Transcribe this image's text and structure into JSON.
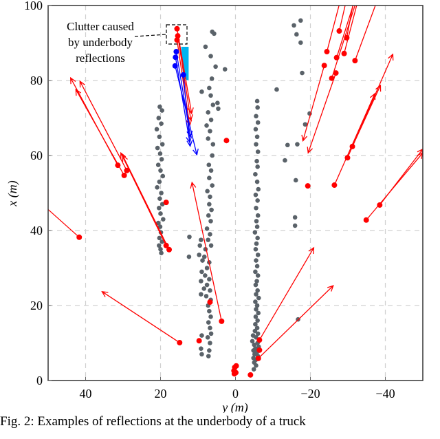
{
  "chart_data": {
    "type": "scatter",
    "xlabel": "y (m)",
    "ylabel": "x (m)",
    "xlim": [
      50,
      -50
    ],
    "ylim": [
      0,
      100
    ],
    "xticks": [
      "40",
      "20",
      "0",
      "−20",
      "−40"
    ],
    "xtick_values": [
      40,
      20,
      0,
      -20,
      -40
    ],
    "yticks": [
      "0",
      "20",
      "40",
      "60",
      "80",
      "100"
    ],
    "ytick_values": [
      0,
      20,
      40,
      60,
      80,
      100
    ],
    "grid": true,
    "colors": {
      "clutter": "#5a6269",
      "red": "#ff0000",
      "blue": "#0000ff",
      "cyan": "#00b4f0"
    },
    "annotation": {
      "lines": [
        "Clutter caused",
        "by underbody",
        "reflections"
      ]
    },
    "gray_points": [
      [
        20.2,
        73
      ],
      [
        19.6,
        72
      ],
      [
        20.5,
        70
      ],
      [
        19.8,
        68.5
      ],
      [
        21.0,
        67
      ],
      [
        20.3,
        65
      ],
      [
        19.5,
        63
      ],
      [
        20.8,
        62
      ],
      [
        20.1,
        60.5
      ],
      [
        19.7,
        59
      ],
      [
        20.6,
        57.5
      ],
      [
        20.0,
        56
      ],
      [
        19.4,
        54.5
      ],
      [
        20.3,
        53
      ],
      [
        20.9,
        51.5
      ],
      [
        19.8,
        50
      ],
      [
        20.2,
        48.5
      ],
      [
        19.5,
        47
      ],
      [
        20.4,
        46
      ],
      [
        20.0,
        44.5
      ],
      [
        19.3,
        43
      ],
      [
        20.6,
        42
      ],
      [
        20.1,
        41
      ],
      [
        19.9,
        39.5
      ],
      [
        20.3,
        38
      ],
      [
        19.6,
        37
      ],
      [
        20.4,
        36
      ],
      [
        20.0,
        35
      ],
      [
        19.8,
        34
      ],
      [
        6.2,
        93
      ],
      [
        5.7,
        92.5
      ],
      [
        8.0,
        89
      ],
      [
        6.6,
        86.5
      ],
      [
        5.3,
        83.7
      ],
      [
        2.8,
        83
      ],
      [
        6.3,
        80.5
      ],
      [
        7.0,
        78
      ],
      [
        9.0,
        77
      ],
      [
        6.6,
        76
      ],
      [
        4.8,
        74
      ],
      [
        6.0,
        73.5
      ],
      [
        4.6,
        72.5
      ],
      [
        7.3,
        71.5
      ],
      [
        6.5,
        69.5
      ],
      [
        7.7,
        68
      ],
      [
        6.8,
        66.5
      ],
      [
        7.3,
        64.5
      ],
      [
        6.0,
        63
      ],
      [
        6.2,
        60
      ],
      [
        7.1,
        57.5
      ],
      [
        6.5,
        56
      ],
      [
        7.0,
        54
      ],
      [
        6.2,
        52
      ],
      [
        7.5,
        50.5
      ],
      [
        6.8,
        49
      ],
      [
        7.0,
        47
      ],
      [
        6.4,
        45.5
      ],
      [
        7.2,
        44
      ],
      [
        6.6,
        42.5
      ],
      [
        7.6,
        40.5
      ],
      [
        6.8,
        39
      ],
      [
        7.3,
        37.5
      ],
      [
        6.5,
        36
      ],
      [
        9.2,
        37.5
      ],
      [
        9.5,
        36
      ],
      [
        8.0,
        35
      ],
      [
        9.7,
        33.5
      ],
      [
        8.3,
        33
      ],
      [
        8.8,
        32
      ],
      [
        7.0,
        31.5
      ],
      [
        7.6,
        30
      ],
      [
        9.0,
        29
      ],
      [
        8.1,
        28
      ],
      [
        7.0,
        27
      ],
      [
        9.2,
        26.5
      ],
      [
        7.6,
        25.5
      ],
      [
        8.4,
        24.5
      ],
      [
        6.8,
        24
      ],
      [
        9.2,
        23
      ],
      [
        7.8,
        22.5
      ],
      [
        6.6,
        21.5
      ],
      [
        7.3,
        20
      ],
      [
        7.0,
        18.5
      ],
      [
        6.6,
        17
      ],
      [
        7.2,
        15.5
      ],
      [
        6.8,
        14
      ],
      [
        6.5,
        12.5
      ],
      [
        9.0,
        12
      ],
      [
        7.4,
        11.5
      ],
      [
        6.8,
        10
      ],
      [
        9.2,
        8.5
      ],
      [
        7.0,
        8
      ],
      [
        9.0,
        7
      ],
      [
        7.2,
        6.5
      ],
      [
        12.3,
        38.3
      ],
      [
        12.4,
        33
      ],
      [
        -5.8,
        74.5
      ],
      [
        -5.9,
        72.8
      ],
      [
        -5.5,
        70.5
      ],
      [
        -6.0,
        68.8
      ],
      [
        -5.4,
        67
      ],
      [
        -5.8,
        65
      ],
      [
        -5.5,
        63
      ],
      [
        -6.0,
        61
      ],
      [
        -5.7,
        58.5
      ],
      [
        -5.9,
        57
      ],
      [
        -5.3,
        55
      ],
      [
        -5.8,
        53
      ],
      [
        -6.1,
        51
      ],
      [
        -5.4,
        49.5
      ],
      [
        -5.9,
        48
      ],
      [
        -5.5,
        46
      ],
      [
        -6.0,
        44
      ],
      [
        -5.6,
        42.5
      ],
      [
        -5.8,
        41
      ],
      [
        -5.2,
        39.5
      ],
      [
        -5.9,
        38
      ],
      [
        -5.6,
        36.5
      ],
      [
        -5.4,
        35
      ],
      [
        -6.0,
        33.5
      ],
      [
        -5.5,
        32
      ],
      [
        -5.8,
        30.5
      ],
      [
        -5.3,
        29
      ],
      [
        -6.0,
        28
      ],
      [
        -5.7,
        26.5
      ],
      [
        -5.4,
        25.5
      ],
      [
        -5.9,
        24
      ],
      [
        -5.5,
        23
      ],
      [
        -6.2,
        22
      ],
      [
        -5.3,
        21
      ],
      [
        -5.8,
        20
      ],
      [
        -5.5,
        19
      ],
      [
        -6.1,
        18
      ],
      [
        -5.4,
        17
      ],
      [
        -5.9,
        16
      ],
      [
        -5.3,
        15
      ],
      [
        -5.8,
        14
      ],
      [
        -5.2,
        13.2
      ],
      [
        -6.0,
        12.5
      ],
      [
        -4.7,
        12
      ],
      [
        -5.5,
        11.5
      ],
      [
        -4.5,
        10.5
      ],
      [
        -5.9,
        10
      ],
      [
        -5.0,
        9.5
      ],
      [
        -6.2,
        9
      ],
      [
        -5.3,
        8.5
      ],
      [
        -4.8,
        8
      ],
      [
        -5.7,
        7.5
      ],
      [
        -5.1,
        7
      ],
      [
        -6.0,
        6.5
      ],
      [
        -4.8,
        6
      ],
      [
        -5.4,
        5.5
      ],
      [
        -5.0,
        4.8
      ],
      [
        -5.5,
        4
      ],
      [
        -4.9,
        3
      ],
      [
        -15.6,
        94.7
      ],
      [
        -17.4,
        96
      ],
      [
        -16.3,
        92.3
      ],
      [
        -17.4,
        90.1
      ],
      [
        -17.8,
        82
      ],
      [
        -11.0,
        77.6
      ],
      [
        -18.6,
        68.3
      ],
      [
        -19.8,
        71.2
      ],
      [
        -13.9,
        62.8
      ],
      [
        -16.5,
        63
      ],
      [
        -13.2,
        58.7
      ],
      [
        -16.1,
        53.4
      ],
      [
        -15.9,
        43.5
      ],
      [
        -15.9,
        41.3
      ],
      [
        -16.7,
        16.3
      ]
    ],
    "red_points": [
      [
        41.7,
        38.2
      ],
      [
        31.4,
        57.4
      ],
      [
        29.7,
        54.7
      ],
      [
        29.0,
        56.0
      ],
      [
        18.5,
        47.5
      ],
      [
        18.5,
        36.0
      ],
      [
        17.7,
        34.9
      ],
      [
        14.9,
        10.1
      ],
      [
        3.7,
        15.8
      ],
      [
        6.8,
        20.9
      ],
      [
        9.7,
        10.6
      ],
      [
        2.4,
        64.0
      ],
      [
        0.2,
        3.5
      ],
      [
        -0.2,
        3.9
      ],
      [
        0.4,
        2.6
      ],
      [
        -0.1,
        2.1
      ],
      [
        0.3,
        1.8
      ],
      [
        -4.0,
        1.5
      ],
      [
        -6.4,
        10.8
      ],
      [
        -6.4,
        8.1
      ],
      [
        -6.1,
        5.9
      ],
      [
        -24.4,
        87.7
      ],
      [
        -27.7,
        93.2
      ],
      [
        -29.7,
        91.4
      ],
      [
        -27.0,
        86.1
      ],
      [
        -29.0,
        87.2
      ],
      [
        -31.9,
        85.3
      ],
      [
        -23.7,
        84.0
      ],
      [
        -26.8,
        82.0
      ],
      [
        -25.7,
        80.6
      ],
      [
        -19.3,
        51.9
      ],
      [
        -26.4,
        52.1
      ],
      [
        -29.9,
        59.4
      ],
      [
        -31.2,
        62.4
      ],
      [
        -38.5,
        46.8
      ],
      [
        -34.9,
        42.8
      ],
      [
        15.6,
        93.8
      ],
      [
        15.4,
        91.9
      ],
      [
        15.6,
        90.8
      ]
    ],
    "red_arrows": [
      {
        "from": [
          41.7,
          38.2
        ],
        "to": [
          51,
          46.5
        ],
        "head": false
      },
      {
        "from": [
          31.4,
          57.4
        ],
        "to": [
          44.0,
          80.7
        ],
        "head": true
      },
      {
        "from": [
          29.7,
          54.7
        ],
        "to": [
          42.6,
          77.6
        ],
        "head": true
      },
      {
        "from": [
          29.0,
          56.0
        ],
        "to": [
          41.5,
          79.8
        ],
        "head": true
      },
      {
        "from": [
          18.5,
          36.0
        ],
        "to": [
          30.6,
          60.7
        ],
        "head": true
      },
      {
        "from": [
          17.7,
          34.9
        ],
        "to": [
          30.1,
          60.0
        ],
        "head": true
      },
      {
        "from": [
          14.9,
          10.1
        ],
        "to": [
          35.6,
          23.7
        ],
        "head": true
      },
      {
        "from": [
          3.7,
          15.8
        ],
        "to": [
          11.6,
          52.8
        ],
        "head": true
      },
      {
        "from": [
          -6.4,
          10.8
        ],
        "to": [
          -20.9,
          35.4
        ],
        "head": true
      },
      {
        "from": [
          -6.1,
          5.9
        ],
        "to": [
          -26.1,
          25.3
        ],
        "head": true
      },
      {
        "from": [
          -24.4,
          87.7
        ],
        "to": [
          -27.9,
          101
        ],
        "head": false
      },
      {
        "from": [
          -27.7,
          93.2
        ],
        "to": [
          -29.5,
          101
        ],
        "head": false
      },
      {
        "from": [
          -29.7,
          91.4
        ],
        "to": [
          -31.5,
          101
        ],
        "head": false
      },
      {
        "from": [
          -27.0,
          86.1
        ],
        "to": [
          -31.7,
          101
        ],
        "head": false
      },
      {
        "from": [
          -29.0,
          87.2
        ],
        "to": [
          -32.6,
          101
        ],
        "head": false
      },
      {
        "from": [
          -25.7,
          80.6
        ],
        "to": [
          -32.2,
          101
        ],
        "head": false
      },
      {
        "from": [
          -31.9,
          85.3
        ],
        "to": [
          -37.7,
          101
        ],
        "head": false
      },
      {
        "from": [
          -23.7,
          84.0
        ],
        "to": [
          -18.0,
          63.9
        ],
        "head": true
      },
      {
        "from": [
          -26.8,
          82.0
        ],
        "to": [
          -19.4,
          60.7
        ],
        "head": true
      },
      {
        "from": [
          -26.4,
          52.1
        ],
        "to": [
          -37.2,
          76.5
        ],
        "head": true
      },
      {
        "from": [
          -29.9,
          59.4
        ],
        "to": [
          -42.0,
          87.0
        ],
        "head": true
      },
      {
        "from": [
          -31.2,
          62.4
        ],
        "to": [
          -38.7,
          78.7
        ],
        "head": true
      },
      {
        "from": [
          -38.5,
          46.8
        ],
        "to": [
          -50,
          61.7
        ],
        "head": true
      },
      {
        "from": [
          -34.9,
          42.8
        ],
        "to": [
          -50,
          60.7
        ],
        "head": true
      },
      {
        "from": [
          15.6,
          93.8
        ],
        "to": [
          11.7,
          71.2
        ],
        "head": true
      },
      {
        "from": [
          15.4,
          91.9
        ],
        "to": [
          11.9,
          69.4
        ],
        "head": true
      },
      {
        "from": [
          15.6,
          90.8
        ],
        "to": [
          12.2,
          68.0
        ],
        "head": true
      }
    ],
    "blue_points": [
      [
        15.8,
        87.7
      ],
      [
        16.0,
        86.2
      ],
      [
        16.1,
        83.9
      ],
      [
        13.9,
        81.5
      ]
    ],
    "blue_arrows": [
      {
        "from": [
          15.8,
          87.7
        ],
        "to": [
          12.0,
          65.0
        ],
        "head": true
      },
      {
        "from": [
          16.0,
          86.2
        ],
        "to": [
          12.2,
          63.5
        ],
        "head": true
      },
      {
        "from": [
          16.1,
          83.9
        ],
        "to": [
          10.3,
          60.2
        ],
        "head": true
      },
      {
        "from": [
          13.9,
          81.5
        ],
        "to": [
          12.1,
          62.5
        ],
        "head": true
      }
    ],
    "cyan_region": [
      [
        14.5,
        89
      ],
      [
        12.5,
        89
      ],
      [
        12.5,
        80
      ],
      [
        14.0,
        80.5
      ]
    ]
  },
  "caption": "Fig. 2:  Examples of reflections at the underbody of a truck"
}
